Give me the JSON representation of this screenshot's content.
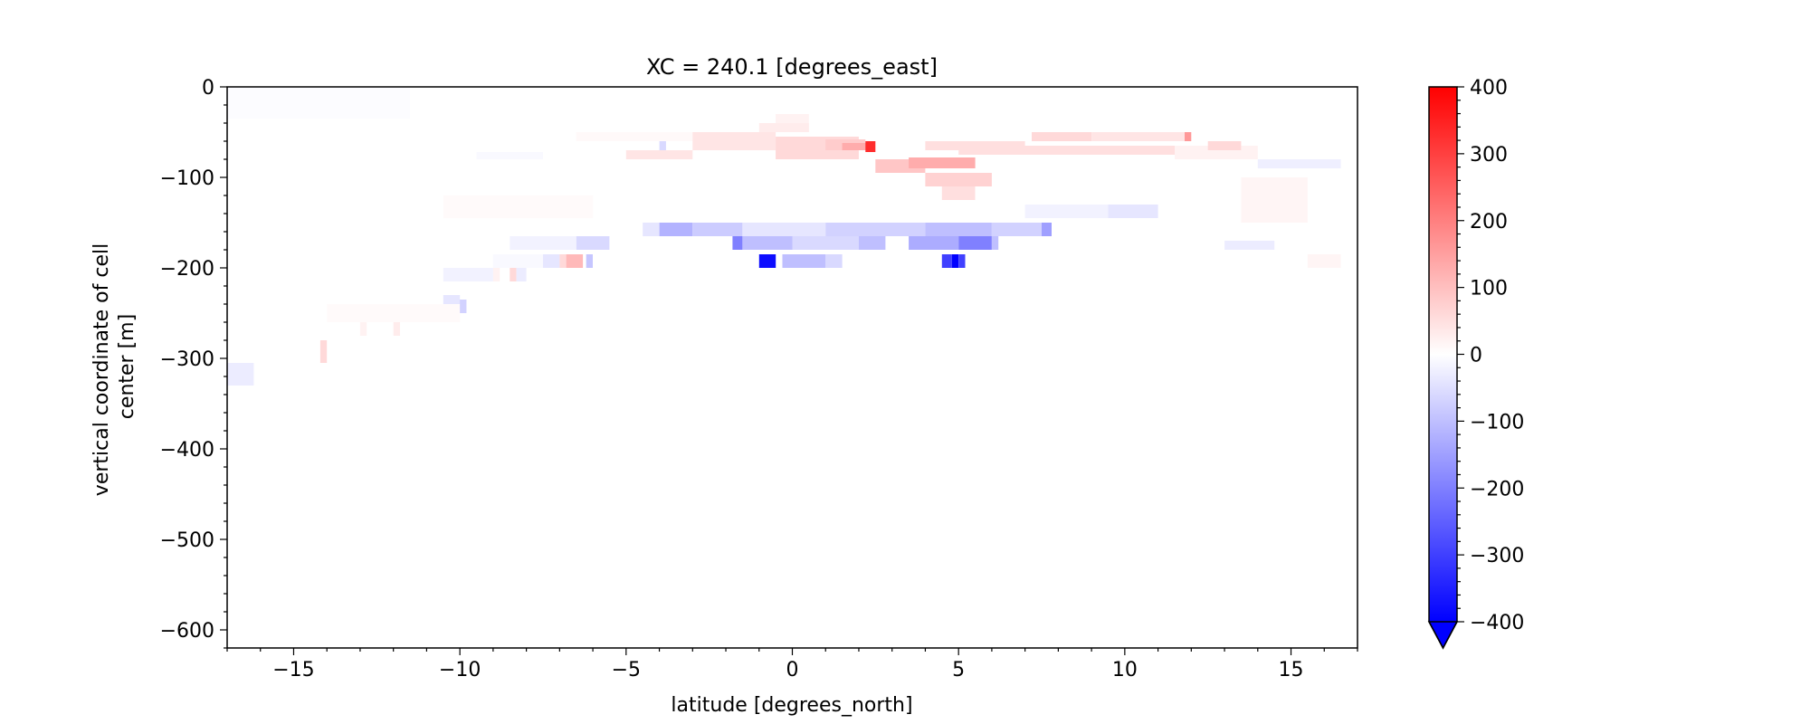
{
  "chart_data": {
    "type": "heatmap",
    "title": "XC = 240.1 [degrees_east]",
    "xlabel": "latitude [degrees_north]",
    "ylabel_lines": [
      "vertical coordinate of cell",
      "center [m]"
    ],
    "xlim": [
      -17,
      17
    ],
    "ylim": [
      -620,
      0
    ],
    "xticks": [
      -15,
      -10,
      -5,
      0,
      5,
      10,
      15
    ],
    "xtick_labels": [
      "−15",
      "−10",
      "−5",
      "0",
      "5",
      "10",
      "15"
    ],
    "yticks": [
      0,
      -100,
      -200,
      -300,
      -400,
      -500,
      -600
    ],
    "ytick_labels": [
      "0",
      "−100",
      "−200",
      "−300",
      "−400",
      "−500",
      "−600"
    ],
    "colorbar": {
      "range": [
        -400,
        400
      ],
      "ticks": [
        400,
        300,
        200,
        100,
        0,
        -100,
        -200,
        -300,
        -400
      ],
      "tick_labels": [
        "400",
        "300",
        "200",
        "100",
        "0",
        "−100",
        "−200",
        "−300",
        "−400"
      ],
      "colormap": "bwr",
      "extend": "min",
      "low_color": "#0000ff",
      "mid_color": "#ffffff",
      "high_color": "#ff0000"
    },
    "cells": [
      {
        "x": [
          -17,
          -11.5
        ],
        "y": [
          -35,
          0
        ],
        "v": -4
      },
      {
        "x": [
          -9.5,
          -7.5
        ],
        "y": [
          -80,
          -72
        ],
        "v": -10
      },
      {
        "x": [
          -6.5,
          -1
        ],
        "y": [
          -60,
          -50
        ],
        "v": 10
      },
      {
        "x": [
          -5,
          -3
        ],
        "y": [
          -80,
          -70
        ],
        "v": 40
      },
      {
        "x": [
          -4,
          -3.8
        ],
        "y": [
          -70,
          -60
        ],
        "v": -60
      },
      {
        "x": [
          -3,
          -0.5
        ],
        "y": [
          -70,
          -50
        ],
        "v": 40
      },
      {
        "x": [
          -1,
          0.5
        ],
        "y": [
          -50,
          -40
        ],
        "v": 30
      },
      {
        "x": [
          -0.5,
          0.5
        ],
        "y": [
          -40,
          -30
        ],
        "v": 20
      },
      {
        "x": [
          -0.5,
          2
        ],
        "y": [
          -80,
          -55
        ],
        "v": 60
      },
      {
        "x": [
          1,
          2.2
        ],
        "y": [
          -70,
          -58
        ],
        "v": 80
      },
      {
        "x": [
          1.5,
          2.3
        ],
        "y": [
          -70,
          -62
        ],
        "v": 130
      },
      {
        "x": [
          2.2,
          2.5
        ],
        "y": [
          -72,
          -60
        ],
        "v": 330
      },
      {
        "x": [
          2.5,
          4
        ],
        "y": [
          -95,
          -80
        ],
        "v": 90
      },
      {
        "x": [
          3.5,
          5.5
        ],
        "y": [
          -90,
          -78
        ],
        "v": 130
      },
      {
        "x": [
          4,
          6
        ],
        "y": [
          -110,
          -95
        ],
        "v": 70
      },
      {
        "x": [
          4.5,
          5.5
        ],
        "y": [
          -125,
          -110
        ],
        "v": 50
      },
      {
        "x": [
          4,
          7
        ],
        "y": [
          -70,
          -60
        ],
        "v": 50
      },
      {
        "x": [
          5,
          11.5
        ],
        "y": [
          -75,
          -65
        ],
        "v": 50
      },
      {
        "x": [
          7.2,
          9
        ],
        "y": [
          -60,
          -50
        ],
        "v": 60
      },
      {
        "x": [
          9,
          11.8
        ],
        "y": [
          -60,
          -50
        ],
        "v": 40
      },
      {
        "x": [
          11.8,
          12
        ],
        "y": [
          -60,
          -50
        ],
        "v": 160
      },
      {
        "x": [
          11.5,
          14
        ],
        "y": [
          -80,
          -65
        ],
        "v": 20
      },
      {
        "x": [
          12.5,
          13.5
        ],
        "y": [
          -70,
          -60
        ],
        "v": 60
      },
      {
        "x": [
          7,
          11
        ],
        "y": [
          -145,
          -130
        ],
        "v": -20
      },
      {
        "x": [
          9.5,
          11
        ],
        "y": [
          -145,
          -130
        ],
        "v": -40
      },
      {
        "x": [
          14,
          16.5
        ],
        "y": [
          -90,
          -80
        ],
        "v": -25
      },
      {
        "x": [
          13.5,
          15.5
        ],
        "y": [
          -150,
          -100
        ],
        "v": 15
      },
      {
        "x": [
          13,
          14.5
        ],
        "y": [
          -180,
          -170
        ],
        "v": -30
      },
      {
        "x": [
          15.5,
          16.5
        ],
        "y": [
          -200,
          -185
        ],
        "v": 15
      },
      {
        "x": [
          -10.5,
          -6
        ],
        "y": [
          -145,
          -120
        ],
        "v": 8
      },
      {
        "x": [
          -4.5,
          -4
        ],
        "y": [
          -165,
          -150
        ],
        "v": -40
      },
      {
        "x": [
          -4,
          -3
        ],
        "y": [
          -165,
          -150
        ],
        "v": -120
      },
      {
        "x": [
          -3,
          -1.5
        ],
        "y": [
          -165,
          -150
        ],
        "v": -80
      },
      {
        "x": [
          -1.5,
          1
        ],
        "y": [
          -165,
          -150
        ],
        "v": -40
      },
      {
        "x": [
          1,
          4
        ],
        "y": [
          -165,
          -150
        ],
        "v": -70
      },
      {
        "x": [
          4,
          6
        ],
        "y": [
          -165,
          -150
        ],
        "v": -100
      },
      {
        "x": [
          6,
          7.5
        ],
        "y": [
          -165,
          -150
        ],
        "v": -70
      },
      {
        "x": [
          7.5,
          7.8
        ],
        "y": [
          -165,
          -150
        ],
        "v": -150
      },
      {
        "x": [
          -6.5,
          -5.5
        ],
        "y": [
          -180,
          -165
        ],
        "v": -60
      },
      {
        "x": [
          -8.5,
          -6.5
        ],
        "y": [
          -180,
          -165
        ],
        "v": -20
      },
      {
        "x": [
          -1.8,
          -1.5
        ],
        "y": [
          -180,
          -165
        ],
        "v": -200
      },
      {
        "x": [
          -1.5,
          0
        ],
        "y": [
          -180,
          -165
        ],
        "v": -100
      },
      {
        "x": [
          0,
          2
        ],
        "y": [
          -180,
          -165
        ],
        "v": -60
      },
      {
        "x": [
          2,
          2.8
        ],
        "y": [
          -180,
          -165
        ],
        "v": -100
      },
      {
        "x": [
          3.5,
          5
        ],
        "y": [
          -180,
          -165
        ],
        "v": -130
      },
      {
        "x": [
          5,
          6
        ],
        "y": [
          -180,
          -165
        ],
        "v": -200
      },
      {
        "x": [
          6,
          6.2
        ],
        "y": [
          -180,
          -165
        ],
        "v": -100
      },
      {
        "x": [
          -9,
          -7.5
        ],
        "y": [
          -200,
          -185
        ],
        "v": -10
      },
      {
        "x": [
          -7.5,
          -7
        ],
        "y": [
          -200,
          -185
        ],
        "v": -40
      },
      {
        "x": [
          -7,
          -6.5
        ],
        "y": [
          -200,
          -185
        ],
        "v": 60
      },
      {
        "x": [
          -6.8,
          -6.3
        ],
        "y": [
          -200,
          -185
        ],
        "v": 110
      },
      {
        "x": [
          -6.2,
          -6
        ],
        "y": [
          -200,
          -185
        ],
        "v": -90
      },
      {
        "x": [
          -1,
          -0.5
        ],
        "y": [
          -200,
          -185
        ],
        "v": -380
      },
      {
        "x": [
          -0.3,
          1
        ],
        "y": [
          -200,
          -185
        ],
        "v": -100
      },
      {
        "x": [
          1,
          1.5
        ],
        "y": [
          -200,
          -185
        ],
        "v": -60
      },
      {
        "x": [
          4.5,
          4.8
        ],
        "y": [
          -200,
          -185
        ],
        "v": -300
      },
      {
        "x": [
          4.8,
          5
        ],
        "y": [
          -200,
          -185
        ],
        "v": -400
      },
      {
        "x": [
          5,
          5.2
        ],
        "y": [
          -200,
          -185
        ],
        "v": -300
      },
      {
        "x": [
          -10.5,
          -9
        ],
        "y": [
          -215,
          -200
        ],
        "v": -20
      },
      {
        "x": [
          -9,
          -8.8
        ],
        "y": [
          -215,
          -200
        ],
        "v": 20
      },
      {
        "x": [
          -8.5,
          -8.3
        ],
        "y": [
          -215,
          -200
        ],
        "v": 60
      },
      {
        "x": [
          -8.3,
          -8
        ],
        "y": [
          -215,
          -200
        ],
        "v": -30
      },
      {
        "x": [
          -10.5,
          -10
        ],
        "y": [
          -245,
          -230
        ],
        "v": -40
      },
      {
        "x": [
          -10,
          -9.8
        ],
        "y": [
          -250,
          -235
        ],
        "v": -70
      },
      {
        "x": [
          -14,
          -10
        ],
        "y": [
          -260,
          -240
        ],
        "v": 8
      },
      {
        "x": [
          -13,
          -12.8
        ],
        "y": [
          -275,
          -260
        ],
        "v": 20
      },
      {
        "x": [
          -12,
          -11.8
        ],
        "y": [
          -275,
          -260
        ],
        "v": 30
      },
      {
        "x": [
          -14.2,
          -14
        ],
        "y": [
          -305,
          -280
        ],
        "v": 60
      },
      {
        "x": [
          -17,
          -16.2
        ],
        "y": [
          -330,
          -305
        ],
        "v": -30
      }
    ]
  }
}
